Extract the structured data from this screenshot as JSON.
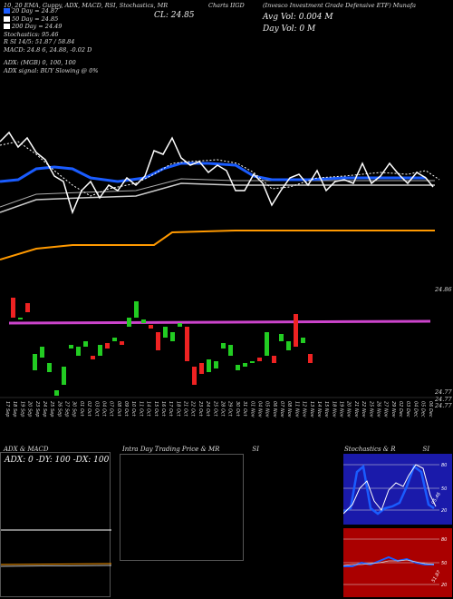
{
  "header": {
    "ticker_line": "(Invesco Investment Grade Defensive ETF) Munafa",
    "indicator_line": "10, 20 EMA, Guppy, ADX, MACD, RSI, Stochastics, MR",
    "chart_label": "Charts IIGD",
    "close_label": "CL: 24.85",
    "avg_vol": "Avg Vol: 0.004 M",
    "day_vol": "Day Vol: 0  M",
    "legend": [
      {
        "color": "#1a5cff",
        "text": "20 Day = 24.87"
      },
      {
        "color": "#ffffff",
        "text": "50 Day = 24.85"
      },
      {
        "color": "#ffffff",
        "text": "200 Day = 24.49"
      }
    ],
    "stats": [
      "Stochastics: 95.46",
      "R                    SI 14/5: 51.87 / 58.84",
      "MACD: 24.8           6,  24.88,  -0.02  D"
    ],
    "adx_line": "ADX:                              (MGB) 0,  100,  100",
    "adx_signal": "ADX  signal:                                  BUY Slowing @ 0%"
  },
  "price_axis": {
    "top": "24.86",
    "bottom_1": "24.77",
    "bottom_2": "24.77",
    "bottom_3": "24.77"
  },
  "dates": [
    "17 Sep",
    "18 Sep",
    "19 Sep",
    "20 Sep",
    "23 Sep",
    "24 Sep",
    "25 Sep",
    "26 Sep",
    "27 Sep",
    "30 Sep",
    "01 Oct",
    "02 Oct",
    "03 Oct",
    "04 Oct",
    "07 Oct",
    "08 Oct",
    "09 Oct",
    "10 Oct",
    "11 Oct",
    "14 Oct",
    "15 Oct",
    "16 Oct",
    "17 Oct",
    "18 Oct",
    "21 Oct",
    "22 Oct",
    "23 Oct",
    "24 Oct",
    "25 Oct",
    "28 Oct",
    "29 Oct",
    "30 Oct",
    "31 Oct",
    "01 Nov",
    "04 Nov",
    "05 Nov",
    "06 Nov",
    "07 Nov",
    "08 Nov",
    "11 Nov",
    "12 Nov",
    "13 Nov",
    "14 Nov",
    "15 Nov",
    "18 Nov",
    "19 Nov",
    "20 Nov",
    "21 Nov",
    "22 Nov",
    "25 Nov",
    "26 Nov",
    "27 Nov",
    "29 Nov",
    "02 Dec",
    "03 Dec",
    "04 Dec",
    "05 Dec",
    "06 Dec"
  ],
  "panels": {
    "adx_title": "ADX  & MACD",
    "adx_values": "ADX: 0  -DY: 100  -DX: 100",
    "intraday_title": "Intra Day Trading Price  & MR",
    "intraday_si": "SI",
    "stoch_title": "Stochastics & R",
    "stoch_si": "SI",
    "stoch_axis": [
      "80",
      "50",
      "20"
    ],
    "stoch_value": "95.46",
    "rsi_axis": [
      "80",
      "50",
      "20"
    ],
    "rsi_value": "51.87"
  },
  "colors": {
    "ema20": "#1a5cff",
    "ema200": "#ff9900",
    "ma_line": "#cc44cc",
    "up": "#22cc22",
    "down": "#ee2222",
    "stoch_bg": "#1a1aaa",
    "rsi_bg": "#aa0000"
  }
}
